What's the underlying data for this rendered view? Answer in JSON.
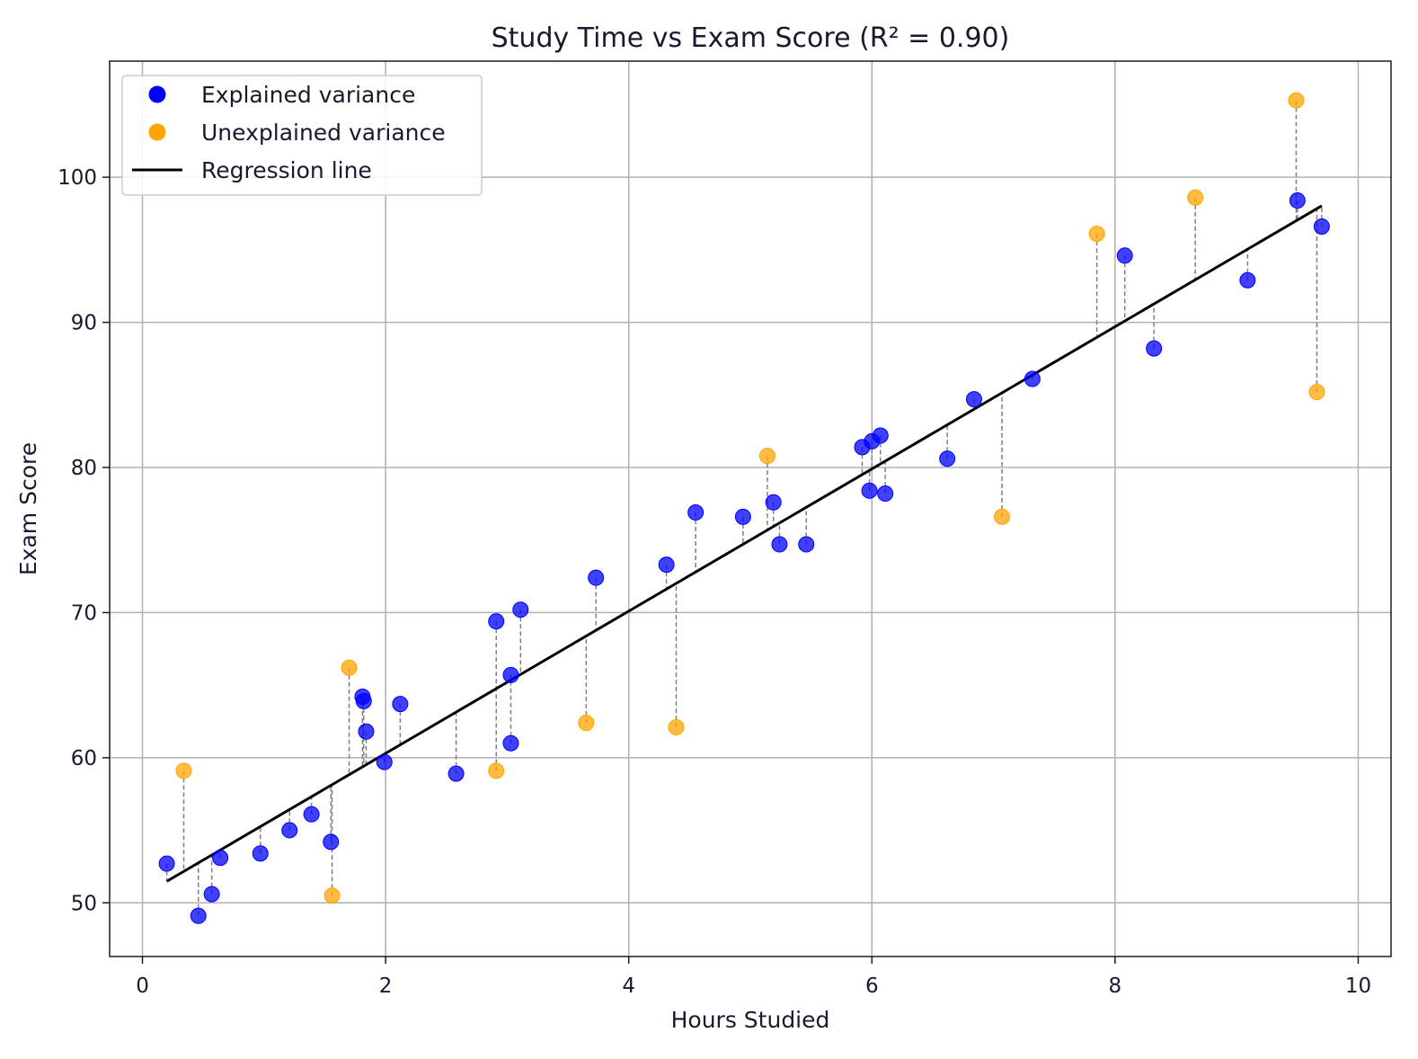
{
  "chart_data": {
    "type": "scatter",
    "title": "Study Time vs Exam Score (R² = 0.90)",
    "xlabel": "Hours Studied",
    "ylabel": "Exam Score",
    "xlim": [
      -0.27,
      10.27
    ],
    "ylim": [
      46.3,
      108.0
    ],
    "xticks": [
      0,
      2,
      4,
      6,
      8,
      10
    ],
    "yticks": [
      50,
      60,
      70,
      80,
      90,
      100
    ],
    "grid": true,
    "legend_position": "top-left",
    "regression": {
      "slope": 4.9,
      "intercept": 50.5,
      "x_range": [
        0.2,
        9.7
      ]
    },
    "series": [
      {
        "name": "Explained variance",
        "color": "#0000ff",
        "points": [
          {
            "x": 0.2,
            "y": 52.7
          },
          {
            "x": 0.46,
            "y": 49.1
          },
          {
            "x": 0.57,
            "y": 50.6
          },
          {
            "x": 0.64,
            "y": 53.1
          },
          {
            "x": 0.97,
            "y": 53.4
          },
          {
            "x": 1.21,
            "y": 55.0
          },
          {
            "x": 1.39,
            "y": 56.1
          },
          {
            "x": 1.55,
            "y": 54.2
          },
          {
            "x": 1.81,
            "y": 64.2
          },
          {
            "x": 1.82,
            "y": 63.9
          },
          {
            "x": 1.84,
            "y": 61.8
          },
          {
            "x": 1.99,
            "y": 59.7
          },
          {
            "x": 2.12,
            "y": 63.7
          },
          {
            "x": 2.58,
            "y": 58.9
          },
          {
            "x": 2.91,
            "y": 69.4
          },
          {
            "x": 3.03,
            "y": 65.7
          },
          {
            "x": 3.03,
            "y": 61.0
          },
          {
            "x": 3.11,
            "y": 70.2
          },
          {
            "x": 3.73,
            "y": 72.4
          },
          {
            "x": 4.31,
            "y": 73.3
          },
          {
            "x": 4.55,
            "y": 76.9
          },
          {
            "x": 4.94,
            "y": 76.6
          },
          {
            "x": 5.19,
            "y": 77.6
          },
          {
            "x": 5.24,
            "y": 74.7
          },
          {
            "x": 5.46,
            "y": 74.7
          },
          {
            "x": 5.92,
            "y": 81.4
          },
          {
            "x": 5.98,
            "y": 78.4
          },
          {
            "x": 6.0,
            "y": 81.8
          },
          {
            "x": 6.07,
            "y": 82.2
          },
          {
            "x": 6.11,
            "y": 78.2
          },
          {
            "x": 6.62,
            "y": 80.6
          },
          {
            "x": 6.84,
            "y": 84.7
          },
          {
            "x": 7.32,
            "y": 86.1
          },
          {
            "x": 8.08,
            "y": 94.6
          },
          {
            "x": 8.32,
            "y": 88.2
          },
          {
            "x": 9.09,
            "y": 92.9
          },
          {
            "x": 9.5,
            "y": 98.4
          },
          {
            "x": 9.7,
            "y": 96.6
          }
        ]
      },
      {
        "name": "Unexplained variance",
        "color": "#ffa500",
        "points": [
          {
            "x": 0.34,
            "y": 59.1
          },
          {
            "x": 1.56,
            "y": 50.5
          },
          {
            "x": 1.7,
            "y": 66.2
          },
          {
            "x": 2.91,
            "y": 59.1
          },
          {
            "x": 3.65,
            "y": 62.4
          },
          {
            "x": 4.39,
            "y": 62.1
          },
          {
            "x": 5.14,
            "y": 80.8
          },
          {
            "x": 7.07,
            "y": 76.6
          },
          {
            "x": 7.85,
            "y": 96.1
          },
          {
            "x": 8.66,
            "y": 98.6
          },
          {
            "x": 9.49,
            "y": 105.3
          },
          {
            "x": 9.66,
            "y": 85.2
          }
        ]
      }
    ],
    "legend": [
      {
        "label": "Explained variance",
        "kind": "marker",
        "color": "#0000ff"
      },
      {
        "label": "Unexplained variance",
        "kind": "marker",
        "color": "#ffa500"
      },
      {
        "label": "Regression line",
        "kind": "line",
        "color": "#000000"
      }
    ]
  }
}
